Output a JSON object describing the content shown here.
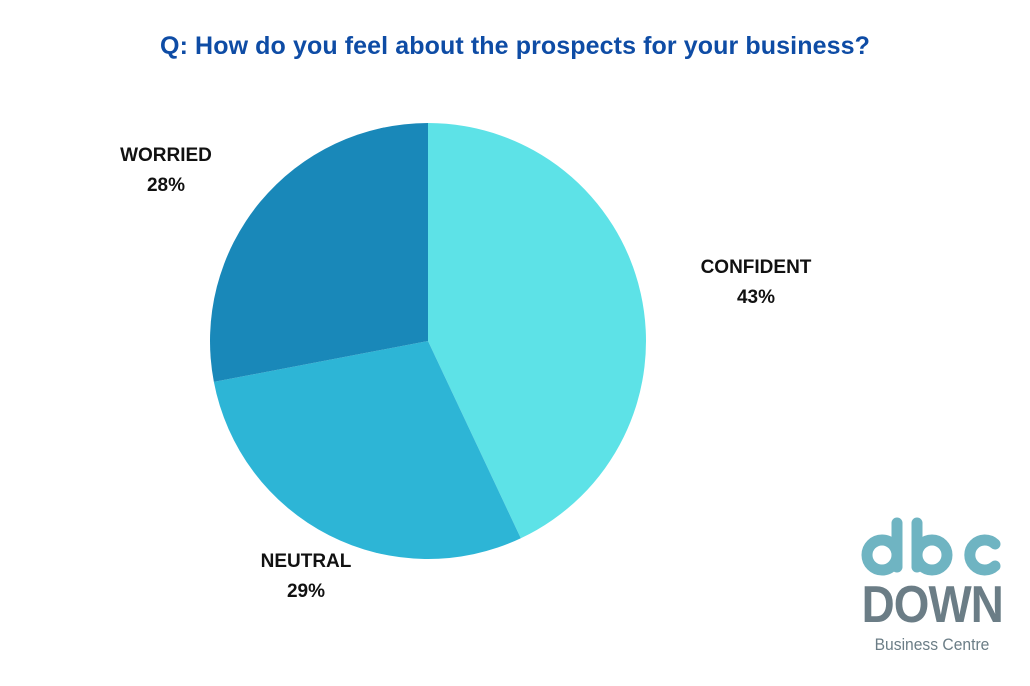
{
  "chart_data": {
    "type": "pie",
    "title": "Q: How do you feel about the prospects for your business?",
    "slices": [
      {
        "label": "CONFIDENT",
        "value": 43,
        "value_label": "43%",
        "color": "#5de2e7"
      },
      {
        "label": "NEUTRAL",
        "value": 29,
        "value_label": "29%",
        "color": "#2db5d6"
      },
      {
        "label": "WORRIED",
        "value": 28,
        "value_label": "28%",
        "color": "#1988b9"
      }
    ],
    "start": "top",
    "direction": "clockwise",
    "legend": "none"
  },
  "logo": {
    "mark": "dbc",
    "name": "DOWN",
    "subtitle": "Business Centre",
    "color": "#6b7d86",
    "mark_color": "#6fb4c2"
  }
}
